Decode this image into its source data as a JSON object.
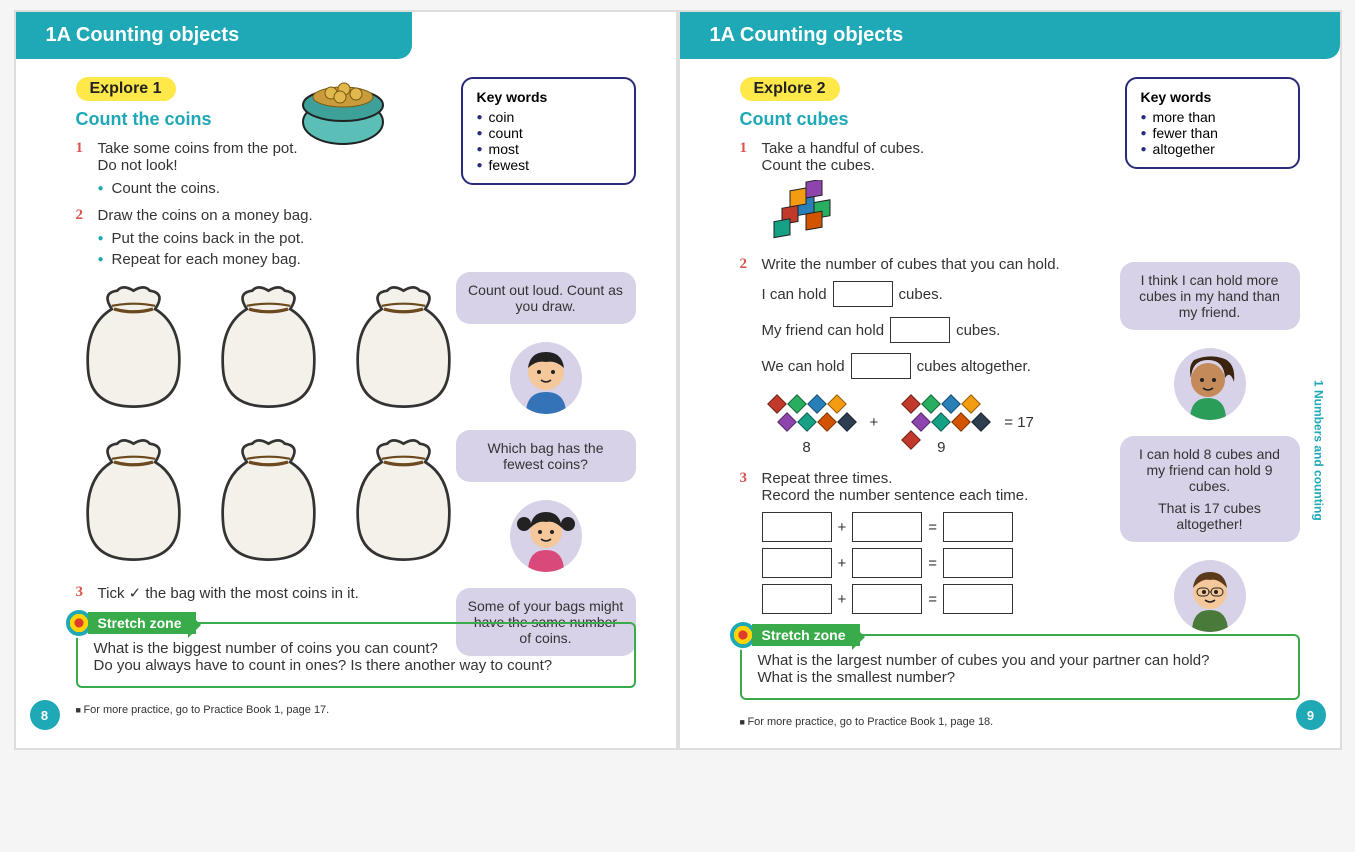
{
  "colors": {
    "teal": "#1fa8b5",
    "yellow": "#ffe84a",
    "navy": "#2a2a7a",
    "green": "#3aab4a",
    "lavender": "#d7d2e8",
    "red_num": "#d9534f"
  },
  "left": {
    "header": "1A Counting objects",
    "explore": "Explore 1",
    "subtitle": "Count the coins",
    "keywords_title": "Key words",
    "keywords": [
      "coin",
      "count",
      "most",
      "fewest"
    ],
    "step1_num": "1",
    "step1_a": "Take some coins from the pot.",
    "step1_b": "Do not look!",
    "step1_sub1": "Count the coins.",
    "step2_num": "2",
    "step2": "Draw the coins on a money bag.",
    "step2_sub1": "Put the coins back in the pot.",
    "step2_sub2": "Repeat for each money bag.",
    "step3_num": "3",
    "step3": "Tick ✓ the bag with the most coins in it.",
    "bubble1": "Count out loud. Count as you draw.",
    "bubble2": "Which bag has the fewest coins?",
    "bubble3": "Some of your bags might have the same number of coins.",
    "stretch_label": "Stretch zone",
    "stretch_q1": "What is the biggest number of coins you can count?",
    "stretch_q2": "Do you always have to count in ones? Is there another way to count?",
    "footer": "For more practice, go to Practice Book 1, page 17.",
    "page_num": "8"
  },
  "right": {
    "header": "1A Counting objects",
    "explore": "Explore 2",
    "subtitle": "Count cubes",
    "keywords_title": "Key words",
    "keywords": [
      "more than",
      "fewer than",
      "altogether"
    ],
    "step1_num": "1",
    "step1_a": "Take a handful of cubes.",
    "step1_b": "Count the cubes.",
    "step2_num": "2",
    "step2": "Write the number of cubes that you can hold.",
    "fill1_a": "I can hold",
    "fill1_b": "cubes.",
    "fill2_a": "My friend can hold",
    "fill2_b": "cubes.",
    "fill3_a": "We can hold",
    "fill3_b": "cubes altogether.",
    "eq_8": "8",
    "eq_plus": "+",
    "eq_9": "9",
    "eq_eq": "= 17",
    "step3_num": "3",
    "step3_a": "Repeat three times.",
    "step3_b": "Record the number sentence each time.",
    "bubble1": "I think I can hold more cubes in my hand than my friend.",
    "bubble2": "I can hold 8 cubes and my friend can hold 9 cubes.",
    "bubble2b": "That is 17 cubes altogether!",
    "stretch_label": "Stretch zone",
    "stretch_q1": "What is the largest number of cubes you and your partner can hold?",
    "stretch_q2": "What is the smallest number?",
    "footer": "For more practice, go to Practice Book 1, page 18.",
    "page_num": "9",
    "side_label": "1 Numbers and counting"
  },
  "cube_colors": [
    "#c0392b",
    "#27ae60",
    "#2980b9",
    "#f39c12",
    "#8e44ad",
    "#16a085",
    "#d35400",
    "#2c3e50"
  ]
}
